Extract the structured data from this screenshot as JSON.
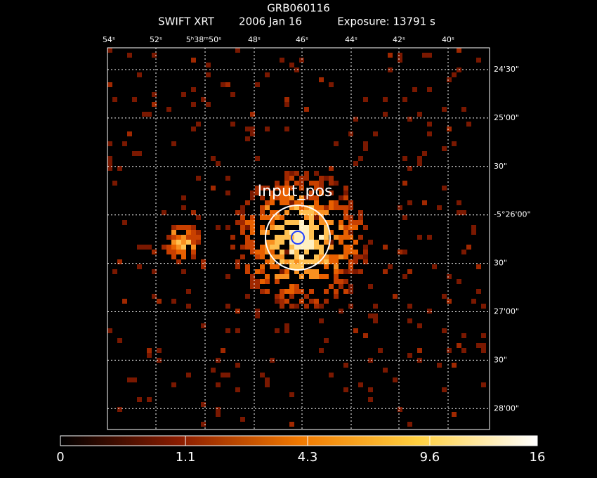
{
  "header": {
    "title": "GRB060116",
    "instrument": "SWIFT XRT",
    "date": "2006 Jan 16",
    "exposure": "Exposure: 13791 s"
  },
  "ra_ticks": [
    "54ˢ",
    "52ˢ",
    "5ʰ38ᵐ50ˢ",
    "48ˢ",
    "46ˢ",
    "44ˢ",
    "42ˢ",
    "40ˢ"
  ],
  "dec_ticks": [
    "24'30\"",
    "25'00\"",
    "30\"",
    "-5°26'00\"",
    "30\"",
    "27'00\"",
    "30\"",
    "28'00\""
  ],
  "annotation": "Input_pos",
  "colorbar": {
    "scale": "sqrt",
    "lim": [
      0,
      16
    ],
    "ticks": [
      0,
      1.1,
      4.3,
      9.6,
      16
    ]
  }
}
